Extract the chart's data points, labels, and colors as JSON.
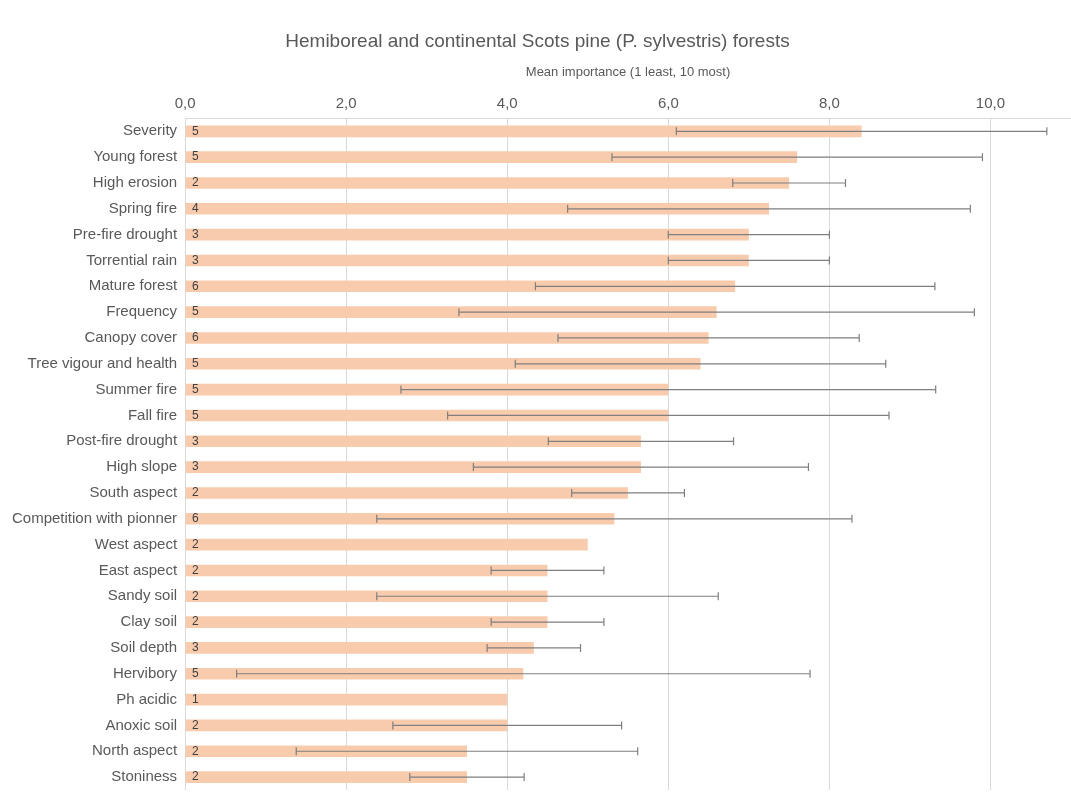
{
  "chart_data": {
    "type": "bar",
    "orientation": "horizontal",
    "title": "Hemiboreal and continental Scots pine (P. sylvestris) forests",
    "xlabel": "Mean importance (1 least, 10 most)",
    "categories": [
      "Severity",
      "Young forest",
      "High erosion",
      "Spring fire",
      "Pre-fire drought",
      "Torrential rain",
      "Mature forest",
      "Frequency",
      "Canopy cover",
      "Tree vigour and health",
      "Summer fire",
      "Fall fire",
      "Post-fire drought",
      "High slope",
      "South aspect",
      "Competition with pionner",
      "West aspect",
      "East aspect",
      "Sandy soil",
      "Clay soil",
      "Soil depth",
      "Hervibory",
      "Ph acidic",
      "Anoxic soil",
      "North aspect",
      "Stoniness"
    ],
    "values": [
      8.4,
      7.6,
      7.5,
      7.25,
      7.0,
      7.0,
      6.83,
      6.6,
      6.5,
      6.4,
      6.0,
      6.0,
      5.66,
      5.66,
      5.5,
      5.33,
      5.0,
      4.5,
      4.5,
      4.5,
      4.33,
      4.2,
      4.0,
      4.0,
      3.5,
      3.5
    ],
    "errors": [
      2.3,
      2.3,
      0.7,
      2.5,
      1.0,
      1.0,
      2.48,
      3.2,
      1.87,
      2.3,
      3.32,
      2.74,
      1.15,
      2.08,
      0.7,
      2.95,
      null,
      0.7,
      2.12,
      0.7,
      0.58,
      3.56,
      null,
      1.42,
      2.12,
      0.71
    ],
    "color": "#f8cbad",
    "xlim": [
      0,
      11
    ],
    "xticks": [
      {
        "value": 0,
        "label": "0,0"
      },
      {
        "value": 2,
        "label": "2,0"
      },
      {
        "value": 4,
        "label": "4,0"
      },
      {
        "value": 6,
        "label": "6,0"
      },
      {
        "value": 8,
        "label": "8,0"
      },
      {
        "value": 10,
        "label": "10,0"
      }
    ],
    "grid": "x",
    "annotations": [
      {
        "text": "5",
        "y": "Severity"
      },
      {
        "text": "5",
        "y": "Young forest"
      },
      {
        "text": "2",
        "y": "High erosion"
      },
      {
        "text": "4",
        "y": "Spring fire"
      },
      {
        "text": "3",
        "y": "Pre-fire drought"
      },
      {
        "text": "3",
        "y": "Torrential rain"
      },
      {
        "text": "6",
        "y": "Mature forest"
      },
      {
        "text": "5",
        "y": "Frequency"
      },
      {
        "text": "6",
        "y": "Canopy cover"
      },
      {
        "text": "5",
        "y": "Tree vigour and health"
      },
      {
        "text": "5",
        "y": "Summer fire"
      },
      {
        "text": "5",
        "y": "Fall fire"
      },
      {
        "text": "3",
        "y": "Post-fire drought"
      },
      {
        "text": "3",
        "y": "High slope"
      },
      {
        "text": "2",
        "y": "South aspect"
      },
      {
        "text": "6",
        "y": "Competition with pionner"
      },
      {
        "text": "2",
        "y": "West aspect"
      },
      {
        "text": "2",
        "y": "East aspect"
      },
      {
        "text": "2",
        "y": "Sandy soil"
      },
      {
        "text": "2",
        "y": "Clay soil"
      },
      {
        "text": "3",
        "y": "Soil depth"
      },
      {
        "text": "5",
        "y": "Hervibory"
      },
      {
        "text": "1",
        "y": "Ph acidic"
      },
      {
        "text": "2",
        "y": "Anoxic soil"
      },
      {
        "text": "2",
        "y": "North aspect"
      },
      {
        "text": "2",
        "y": "Stoniness"
      }
    ]
  }
}
